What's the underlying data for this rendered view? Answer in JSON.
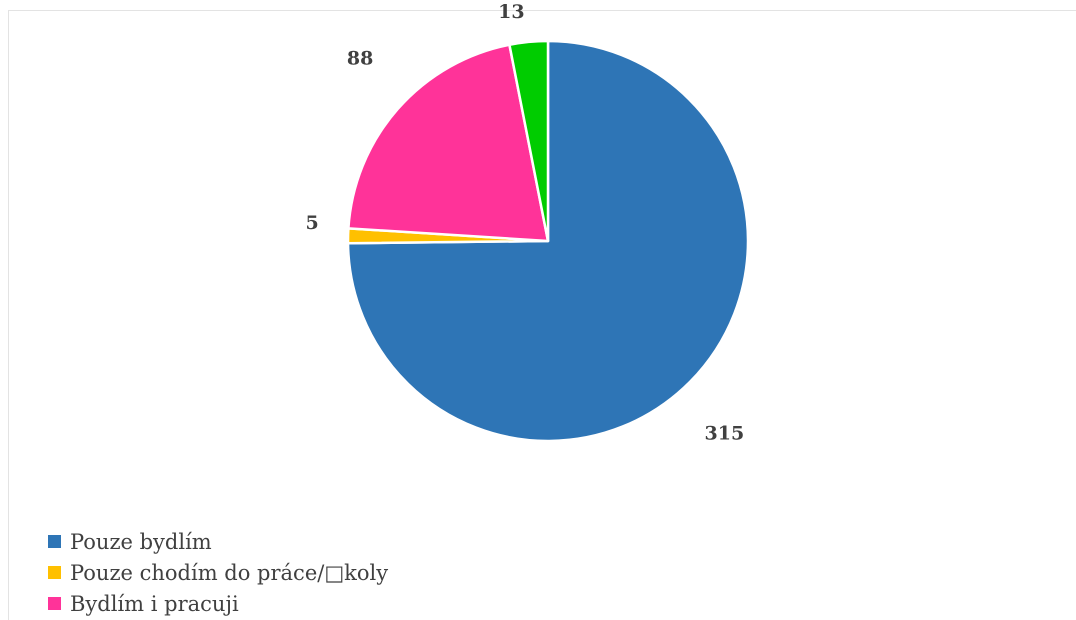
{
  "chart_data": {
    "type": "pie",
    "title": "",
    "start_angle_deg": 0,
    "direction": "clockwise",
    "legend_position": "bottom-left",
    "slices": [
      {
        "label": "Pouze bydlím",
        "value": 315,
        "color": "#2e75b6"
      },
      {
        "label": "Pouze chodím do práce/□koly",
        "value": 5,
        "color": "#ffc000"
      },
      {
        "label": "Bydlím i pracuji",
        "value": 88,
        "color": "#ff3399"
      },
      {
        "label": "",
        "value": 13,
        "color": "#00cc00"
      }
    ],
    "data_labels": [
      "315",
      "5",
      "88",
      "13"
    ]
  }
}
